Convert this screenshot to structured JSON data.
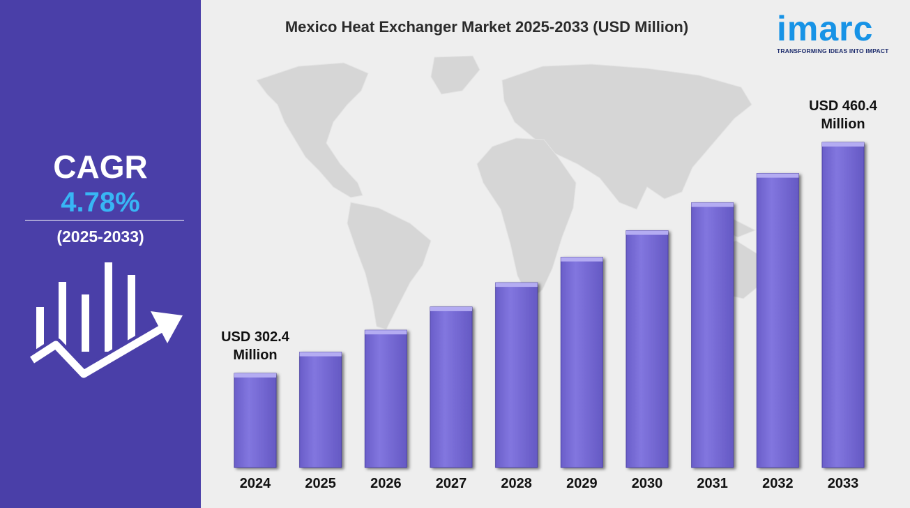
{
  "sidebar": {
    "cagr_label": "CAGR",
    "cagr_value": "4.78%",
    "cagr_period": "(2025-2033)",
    "icon": "growth-chart-icon",
    "bg_color": "#4a3fa8",
    "accent_color": "#38b6f5"
  },
  "logo": {
    "word": "imarc",
    "tagline": "TRANSFORMING IDEAS INTO IMPACT",
    "color": "#1793e6"
  },
  "chart_data": {
    "type": "bar",
    "title": "Mexico Heat Exchanger Market 2025-2033 (USD Million)",
    "categories": [
      "2024",
      "2025",
      "2026",
      "2027",
      "2028",
      "2029",
      "2030",
      "2031",
      "2032",
      "2033"
    ],
    "values": [
      302.4,
      316.9,
      331.9,
      347.8,
      364.4,
      381.8,
      400.0,
      419.1,
      439.1,
      460.4
    ],
    "annotations": [
      {
        "category": "2024",
        "lines": [
          "USD 302.4",
          "Million"
        ]
      },
      {
        "category": "2033",
        "lines": [
          "USD 460.4",
          "Million"
        ]
      }
    ],
    "xlabel": "",
    "ylabel": "",
    "bar_color": "#7e72dc",
    "background": "world-map",
    "grid": false,
    "legend": "none"
  }
}
